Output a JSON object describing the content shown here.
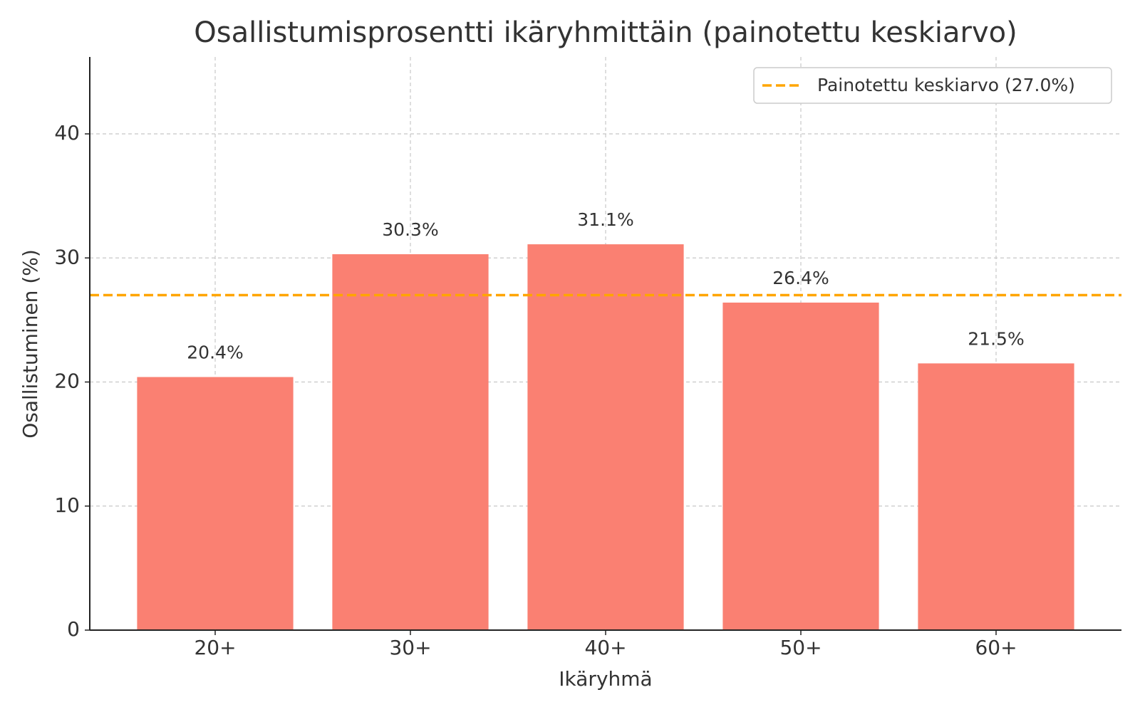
{
  "chart_data": {
    "type": "bar",
    "title": "Osallistumisprosentti ikäryhmittäin (painotettu keskiarvo)",
    "xlabel": "Ikäryhmä",
    "ylabel": "Osallistuminen (%)",
    "categories": [
      "20+",
      "30+",
      "40+",
      "50+",
      "60+"
    ],
    "values": [
      20.4,
      30.3,
      31.1,
      26.4,
      21.5
    ],
    "value_labels": [
      "20.4%",
      "30.3%",
      "31.1%",
      "26.4%",
      "21.5%"
    ],
    "color": "#fa8072",
    "ylim": [
      0,
      46.2
    ],
    "yticks": [
      0,
      10,
      20,
      30,
      40
    ],
    "grid": true,
    "hline": {
      "value": 27.0,
      "name": "Painotettu keskiarvo (27.0%)",
      "color": "#ffa500"
    },
    "legend": "upper right"
  }
}
